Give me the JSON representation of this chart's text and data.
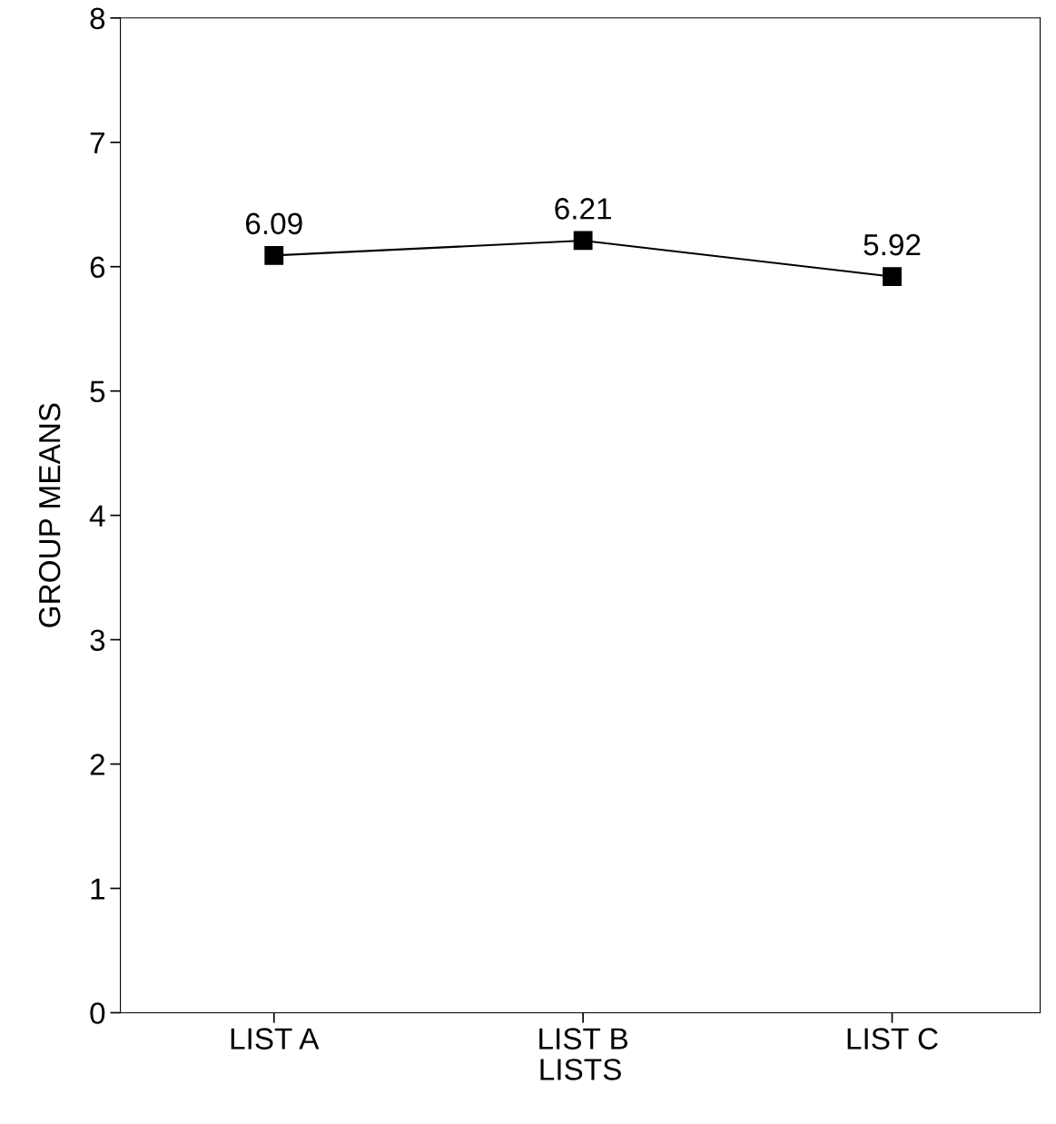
{
  "chart_data": {
    "type": "line",
    "xlabel": "LISTS",
    "ylabel": "GROUP MEANS",
    "categories": [
      "LIST A",
      "LIST B",
      "LIST C"
    ],
    "series": [
      {
        "color": "#000000",
        "values": [
          6.09,
          6.21,
          5.92
        ]
      }
    ],
    "ylim": [
      0,
      8
    ],
    "yticks": [
      0,
      1,
      2,
      3,
      4,
      5,
      6,
      7,
      8
    ],
    "data_labels": true,
    "marker": "square",
    "line_style": "solid",
    "grid": false,
    "legend": false
  }
}
